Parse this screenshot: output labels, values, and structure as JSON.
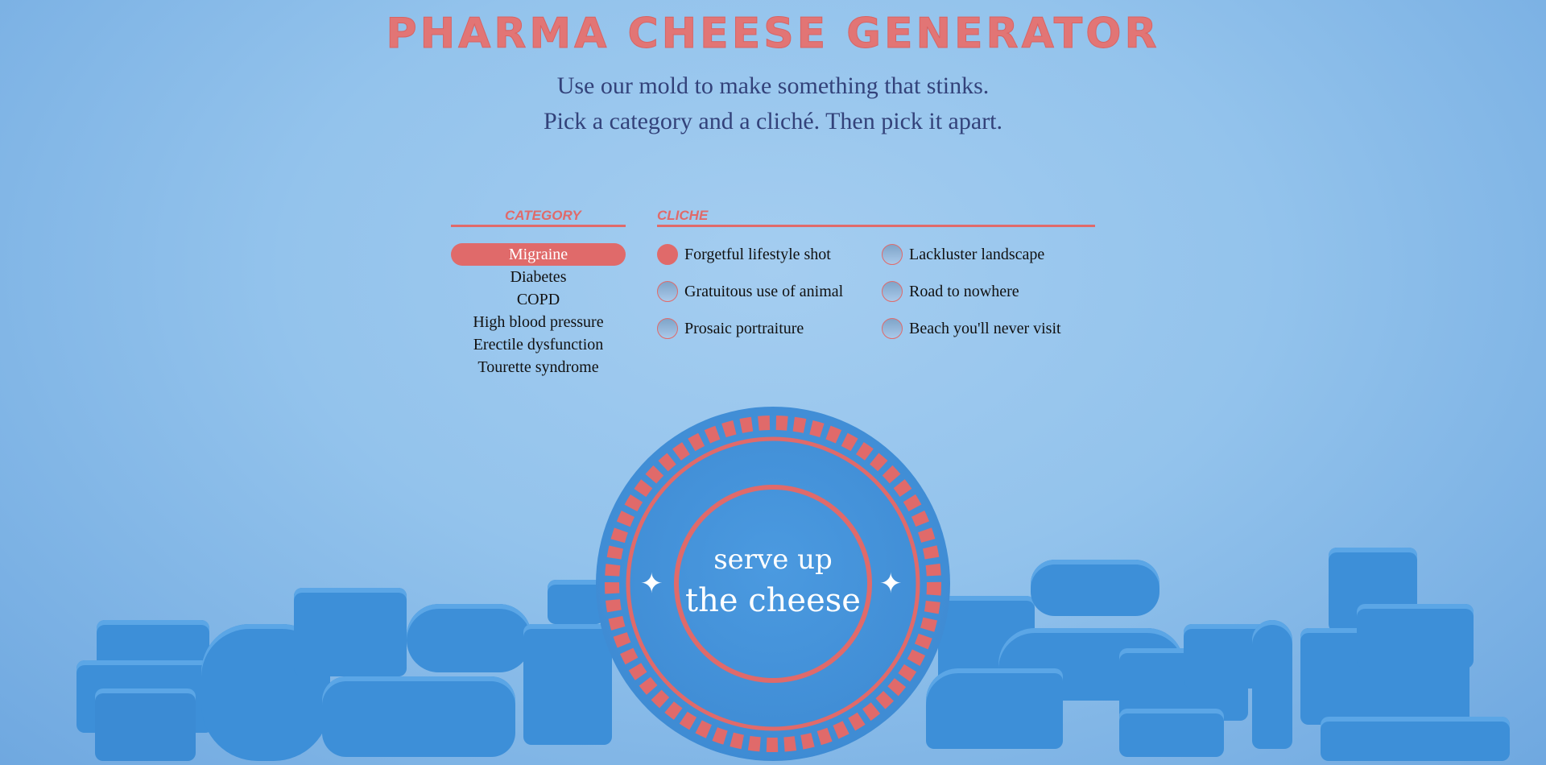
{
  "header": {
    "title": "PHARMA CHEESE GENERATOR",
    "subtitle_line1": "Use our mold to make something that stinks.",
    "subtitle_line2": "Pick a category and a cliché. Then pick it apart."
  },
  "category": {
    "label": "CATEGORY",
    "selected": "Migraine",
    "items": [
      "Migraine",
      "Diabetes",
      "COPD",
      "High blood pressure",
      "Erectile dysfunction",
      "Tourette syndrome"
    ]
  },
  "cliche": {
    "label": "CLICHE",
    "selected": "Forgetful lifestyle shot",
    "items": [
      "Forgetful lifestyle shot",
      "Gratuitous use of animal",
      "Prosaic portraiture",
      "Lackluster landscape",
      "Road to nowhere",
      "Beach you'll never visit"
    ]
  },
  "button": {
    "line1": "serve up",
    "line2": "the cheese"
  },
  "colors": {
    "accent": "#e06a6a",
    "background": "#93c3ec",
    "cheese": "#3d8fd8"
  }
}
